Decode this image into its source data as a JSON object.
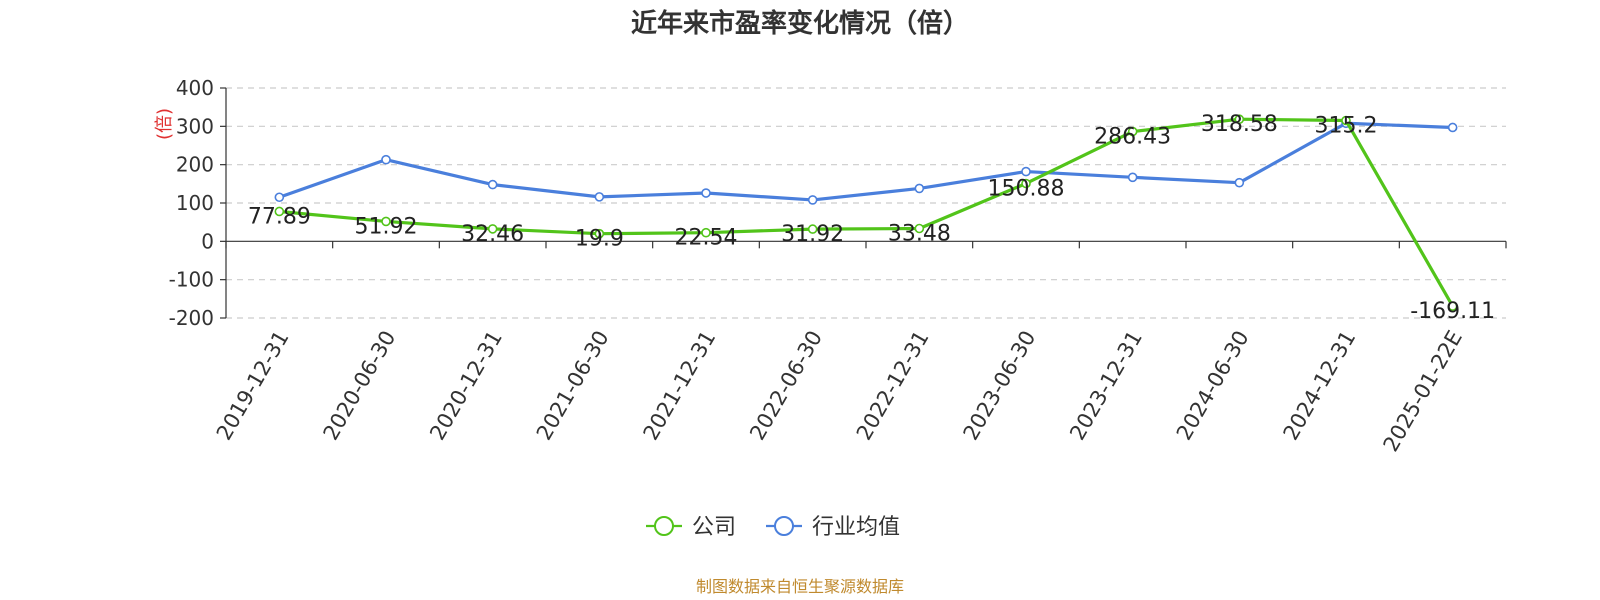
{
  "colors": {
    "company": "#52c41a",
    "industry": "#4a7fdc",
    "footer": "#c08a2e",
    "axis": "#333333",
    "grid": "#cccccc"
  },
  "chart_data": {
    "type": "line",
    "title": "近年来市盈率变化情况（倍）",
    "ylabel": "(倍)",
    "xlabel": "",
    "categories": [
      "2019-12-31",
      "2020-06-30",
      "2020-12-31",
      "2021-06-30",
      "2021-12-31",
      "2022-06-30",
      "2022-12-31",
      "2023-06-30",
      "2023-12-31",
      "2024-06-30",
      "2024-12-31",
      "2025-01-22E"
    ],
    "ylim": [
      -200,
      400
    ],
    "yticks": [
      400,
      300,
      200,
      100,
      0,
      -100,
      -200
    ],
    "grid": true,
    "legend_position": "bottom",
    "series": [
      {
        "name": "公司",
        "color": "#52c41a",
        "values": [
          77.89,
          51.92,
          32.46,
          19.9,
          22.54,
          31.92,
          33.48,
          150.88,
          286.43,
          318.58,
          315.2,
          -169.11
        ],
        "labels": [
          "77.89",
          "51.92",
          "32.46",
          "19.9",
          "22.54",
          "31.92",
          "33.48",
          "150.88",
          "286.43",
          "318.58",
          "315.2",
          "-169.11"
        ]
      },
      {
        "name": "行业均值",
        "color": "#4a7fdc",
        "values": [
          115,
          213,
          148,
          116,
          126,
          108,
          138,
          182,
          167,
          153,
          308,
          297
        ]
      }
    ],
    "footer": "制图数据来自恒生聚源数据库"
  }
}
